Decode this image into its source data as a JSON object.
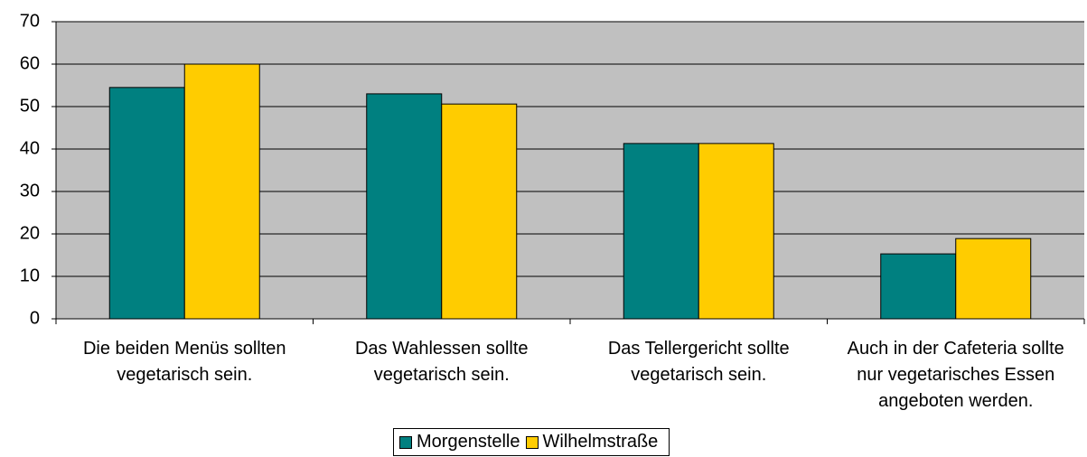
{
  "chart_data": {
    "type": "bar",
    "categories": [
      "Die beiden Menüs sollten vegetarisch sein.",
      "Das Wahlessen sollte vegetarisch sein.",
      "Das Tellergericht sollte vegetarisch sein.",
      "Auch in der Cafeteria sollte nur vegetarisches Essen angeboten werden."
    ],
    "series": [
      {
        "name": "Morgenstelle",
        "color": "#008080",
        "values": [
          54.5,
          53,
          41.3,
          15.3
        ]
      },
      {
        "name": "Wilhelmstraße",
        "color": "#ffcc00",
        "values": [
          60,
          50.6,
          41.3,
          18.9
        ]
      }
    ],
    "ylim": [
      0,
      70
    ],
    "yticks": [
      0,
      10,
      20,
      30,
      40,
      50,
      60,
      70
    ],
    "grid": true,
    "legend": "bottom"
  }
}
